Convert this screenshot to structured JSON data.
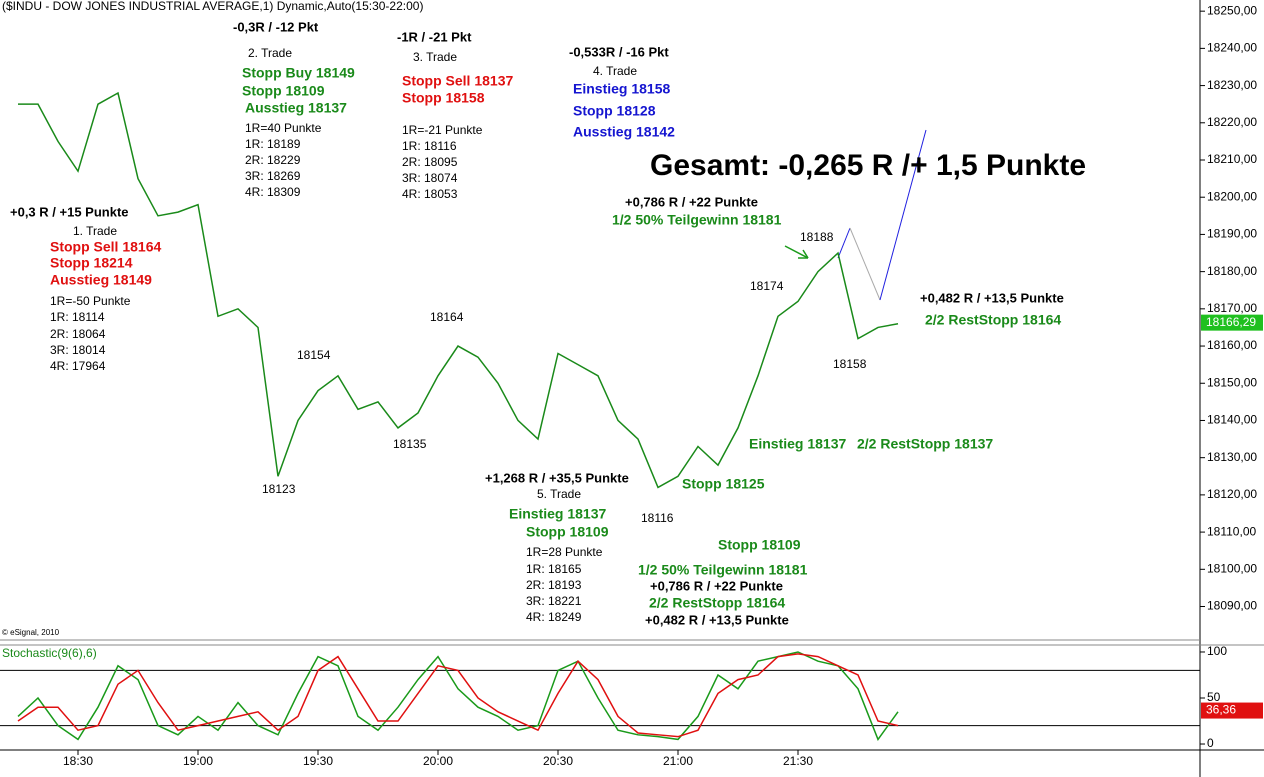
{
  "chart_data": [
    {
      "type": "line",
      "title": "($INDU - DOW JONES INDUSTRIAL AVERAGE,1) Dynamic,Auto(15:30-22:00)",
      "credit": "© eSignal, 2010",
      "categories": [
        null,
        null,
        null,
        "18:30",
        null,
        null,
        null,
        null,
        null,
        "19:00",
        null,
        null,
        null,
        null,
        null,
        "19:30",
        null,
        null,
        null,
        null,
        null,
        "20:00",
        null,
        null,
        null,
        null,
        null,
        "20:30",
        null,
        null,
        null,
        null,
        null,
        "21:00",
        null,
        null,
        null,
        null,
        null,
        "21:30",
        null,
        null,
        null,
        null,
        null
      ],
      "series": [
        {
          "color": "#1a8a1a",
          "values": [
            18225,
            18225,
            18215,
            18207,
            18225,
            18228,
            18205,
            18195,
            18196,
            18198,
            18168,
            18170,
            18165,
            18125,
            18140,
            18148,
            18152,
            18143,
            18145,
            18138,
            18142,
            18152,
            18160,
            18157,
            18150,
            18140,
            18135,
            18158,
            18155,
            18152,
            18140,
            18135,
            18122,
            18125,
            18133,
            18128,
            18138,
            18152,
            18168,
            18172,
            18180,
            18185,
            18162,
            18165,
            18166
          ]
        }
      ],
      "ylim": [
        18081,
        18253
      ],
      "yticks": [
        {
          "value": 18250,
          "label": "18250,00"
        },
        {
          "value": 18240,
          "label": "18240,00"
        },
        {
          "value": 18230,
          "label": "18230,00"
        },
        {
          "value": 18220,
          "label": "18220,00"
        },
        {
          "value": 18210,
          "label": "18210,00"
        },
        {
          "value": 18200,
          "label": "18200,00"
        },
        {
          "value": 18190,
          "label": "18190,00"
        },
        {
          "value": 18180,
          "label": "18180,00"
        },
        {
          "value": 18170,
          "label": "18170,00"
        },
        {
          "value": 18160,
          "label": "18160,00"
        },
        {
          "value": 18150,
          "label": "18150,00"
        },
        {
          "value": 18140,
          "label": "18140,00"
        },
        {
          "value": 18130,
          "label": "18130,00"
        },
        {
          "value": 18120,
          "label": "18120,00"
        },
        {
          "value": 18110,
          "label": "18110,00"
        },
        {
          "value": 18100,
          "label": "18100,00"
        },
        {
          "value": 18090,
          "label": "18090,00"
        }
      ],
      "current": {
        "value": 18166.29,
        "label": "18166,29"
      },
      "annotations": [
        "+0,3 R / +15 Punkte",
        "1. Trade",
        "Stopp Sell 18164",
        "Stopp 18214",
        "Ausstieg 18149",
        "1R=-50 Punkte",
        "1R: 18114",
        "2R: 18064",
        "3R: 18014",
        "4R: 17964",
        "-0,3R / -12 Pkt",
        "2. Trade",
        "Stopp Buy 18149",
        "Stopp 18109",
        "Ausstieg 18137",
        "1R=40 Punkte",
        "1R: 18189",
        "2R: 18229",
        "3R: 18269",
        "4R: 18309",
        "-1R / -21 Pkt",
        "3. Trade",
        "Stopp Sell 18137",
        "Stopp 18158",
        "1R=-21 Punkte",
        "1R: 18116",
        "2R: 18095",
        "3R: 18074",
        "4R: 18053",
        "-0,533R / -16 Pkt",
        "4. Trade",
        "Einstieg 18158",
        "Stopp 18128",
        "Ausstieg 18142",
        "Gesamt: -0,265 R /+ 1,5 Punkte",
        "+0,786 R / +22 Punkte",
        "1/2 50% Teilgewinn 18181",
        "18188",
        "18174",
        "+0,482 R / +13,5 Punkte",
        "2/2 RestStopp 18164",
        "18164",
        "18154",
        "18158",
        "18135",
        "Einstieg 18137",
        "2/2 RestStopp 18137",
        "18123",
        "+1,268 R / +35,5 Punkte",
        "5. Trade",
        "Stopp 18125",
        "Einstieg 18137",
        "Stopp 18109",
        "18116",
        "1R=28 Punkte",
        "1R: 18165",
        "2R: 18193",
        "3R: 18221",
        "4R: 18249",
        "Stopp 18109",
        "1/2 50% Teilgewinn 18181",
        "+0,786 R / +22 Punkte",
        "2/2 RestStopp 18164",
        "+0,482 R / +13,5 Punkte"
      ]
    },
    {
      "type": "line",
      "title": "Stochastic(9(6),6)",
      "series": [
        {
          "color": "#1a9a1a",
          "values": [
            30,
            50,
            20,
            5,
            40,
            85,
            70,
            20,
            10,
            30,
            15,
            45,
            20,
            10,
            55,
            95,
            85,
            30,
            15,
            40,
            70,
            95,
            60,
            40,
            30,
            15,
            20,
            80,
            90,
            50,
            15,
            10,
            8,
            5,
            30,
            75,
            60,
            90,
            95,
            100,
            90,
            85,
            60,
            5,
            35
          ]
        },
        {
          "color": "#e01010",
          "values": [
            25,
            40,
            40,
            15,
            20,
            65,
            80,
            45,
            15,
            20,
            25,
            30,
            35,
            15,
            30,
            80,
            95,
            60,
            25,
            25,
            55,
            85,
            80,
            50,
            35,
            25,
            15,
            55,
            90,
            70,
            30,
            12,
            10,
            8,
            15,
            55,
            70,
            75,
            95,
            98,
            95,
            85,
            75,
            25,
            20
          ]
        }
      ],
      "ylim": [
        -6.5,
        106.5
      ],
      "yticks": [
        100,
        50,
        0
      ],
      "levels": [
        20,
        80
      ],
      "current": {
        "value": 36.36,
        "label": "36,36"
      }
    }
  ]
}
